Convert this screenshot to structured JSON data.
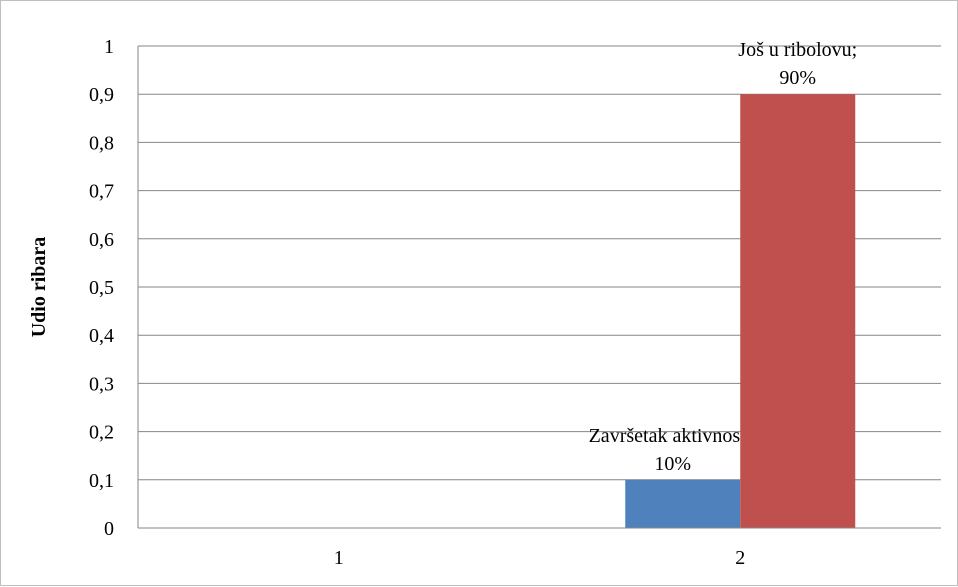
{
  "chart_data": {
    "type": "bar",
    "title": "",
    "xlabel": "",
    "ylabel": "Udio ribara",
    "categories": [
      "1",
      "2"
    ],
    "ylim": [
      0,
      1
    ],
    "yticks": [
      "0",
      "0,1",
      "0,2",
      "0,3",
      "0,4",
      "0,5",
      "0,6",
      "0,7",
      "0,8",
      "0,9",
      "1"
    ],
    "grid": true,
    "legend": "none",
    "series": [
      {
        "values": [
          null,
          0.1
        ],
        "color": "#4f81bd",
        "data_labels": [
          "",
          "Završetak aktivnosti; 10%"
        ]
      },
      {
        "values": [
          null,
          0.9
        ],
        "color": "#c0504d",
        "data_labels": [
          "",
          "Još u ribolovu; 90%"
        ]
      }
    ]
  }
}
